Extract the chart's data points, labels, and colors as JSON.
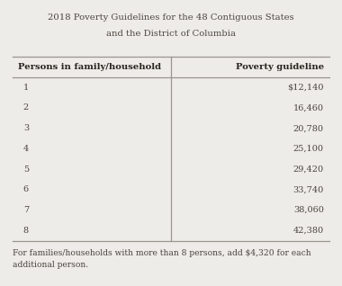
{
  "title_line1": "2018 Poverty Guidelines for the 48 Contiguous States",
  "title_line2": "and the District of Columbia",
  "col1_header": "Persons in family/household",
  "col2_header": "Poverty guideline",
  "persons": [
    "1",
    "2",
    "3",
    "4",
    "5",
    "6",
    "7",
    "8"
  ],
  "guidelines": [
    "$12,140",
    "16,460",
    "20,780",
    "25,100",
    "29,420",
    "33,740",
    "38,060",
    "42,380"
  ],
  "footnote": "For families/households with more than 8 persons, add $4,320 for each\nadditional person.",
  "bg_color": "#eeece8",
  "text_color": "#4a4540",
  "header_color": "#2a2520",
  "line_color": "#999590",
  "col_split": 0.5
}
